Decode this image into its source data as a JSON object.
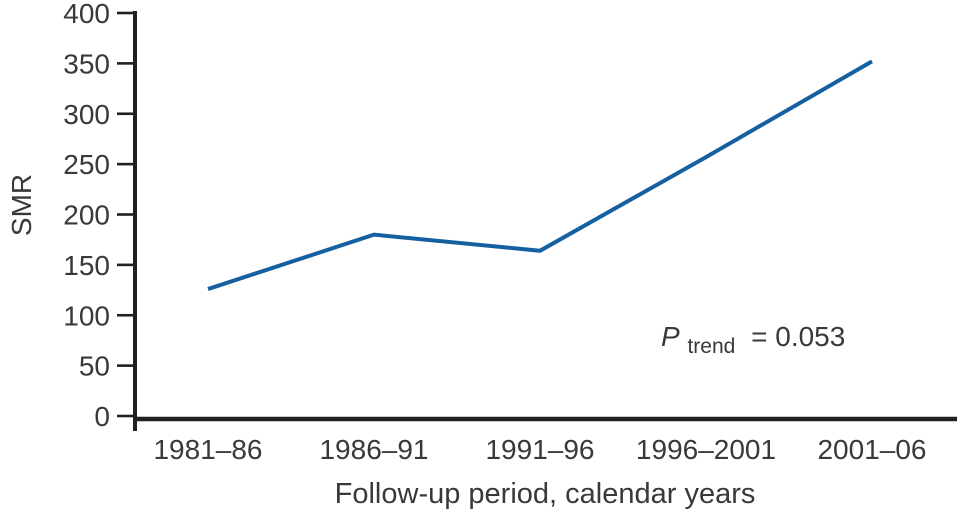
{
  "chart_data": {
    "type": "line",
    "title": "",
    "categories": [
      "1981–86",
      "1986–91",
      "1991–96",
      "1996–2001",
      "2001–06"
    ],
    "series": [
      {
        "name": "SMR",
        "values": [
          126,
          180,
          164,
          257,
          352
        ]
      }
    ],
    "xlabel": "Follow-up period, calendar years",
    "ylabel": "SMR",
    "ylim": [
      0,
      400
    ],
    "yticks": [
      0,
      50,
      100,
      150,
      200,
      250,
      300,
      350,
      400
    ],
    "grid": false,
    "legend": "none",
    "annotation": {
      "p_symbol": "P",
      "p_subscript": "trend",
      "p_value": "= 0.053"
    },
    "colors": {
      "line": "#1560a0",
      "axis": "#242021",
      "text": "#3c3839"
    }
  }
}
